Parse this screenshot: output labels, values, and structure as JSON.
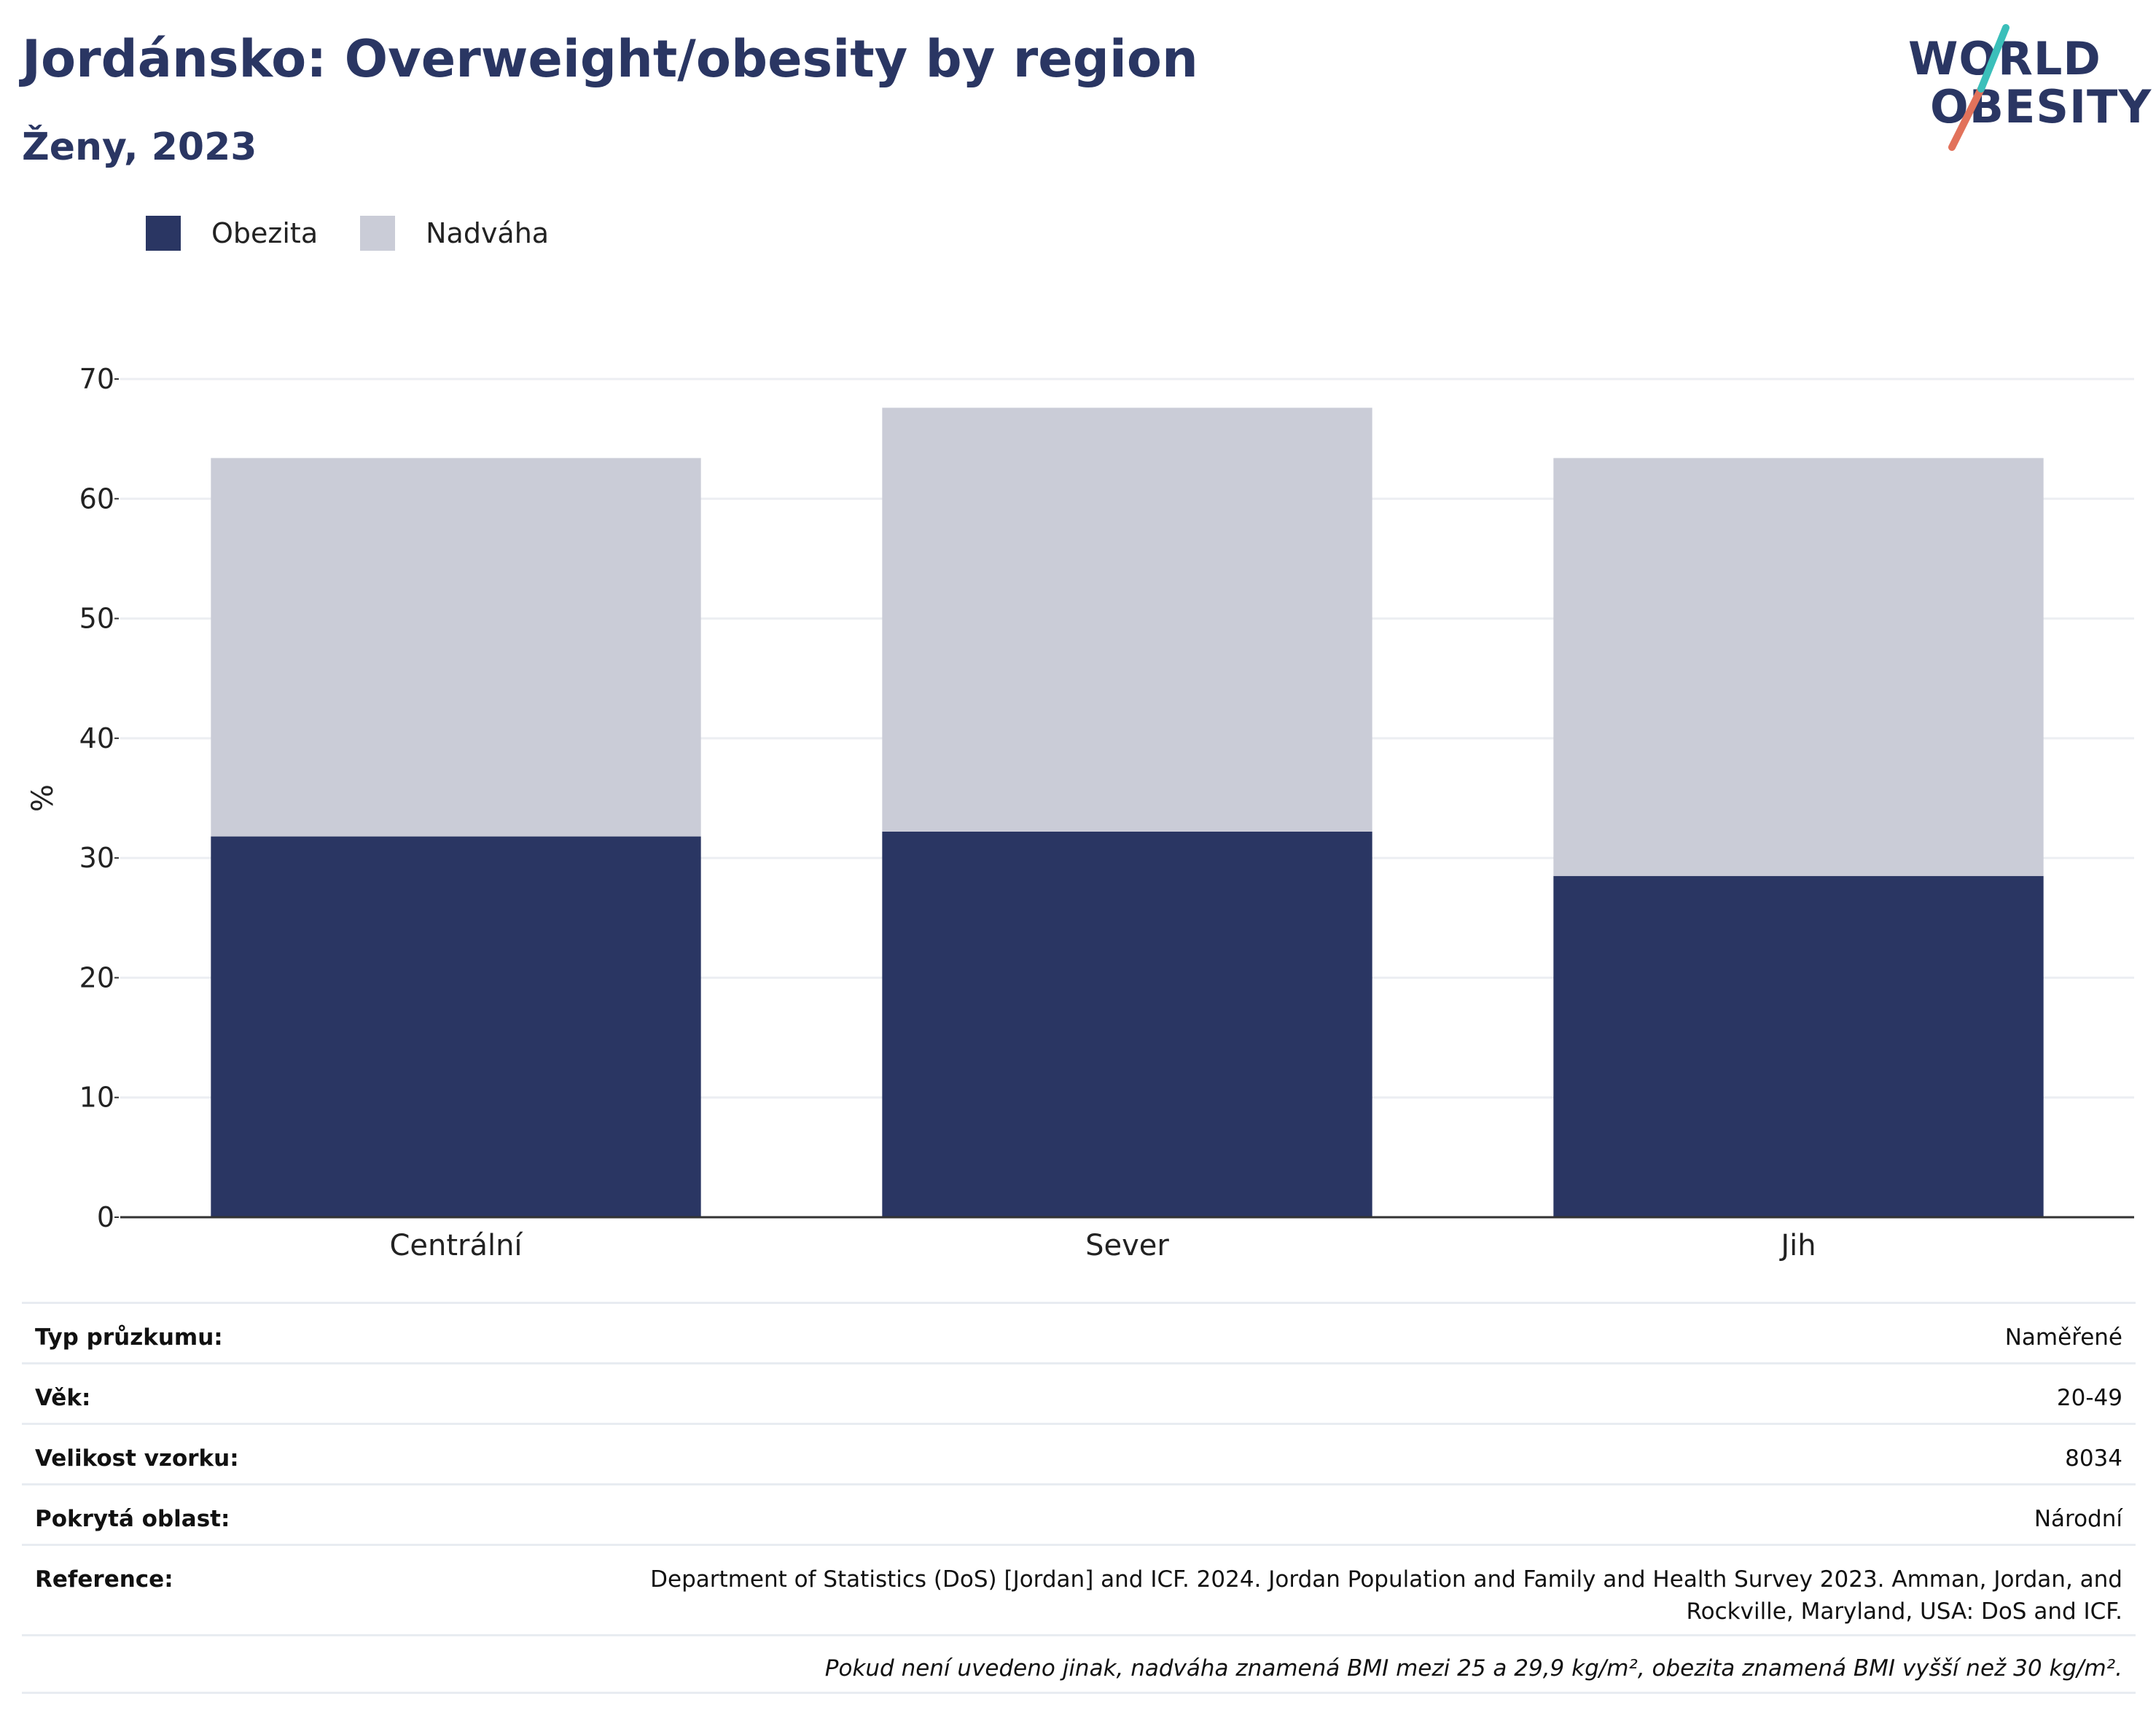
{
  "header": {
    "title": "Jordánsko: Overweight/obesity by region",
    "subtitle": "Ženy, 2023"
  },
  "logo": {
    "line1": "WORLD",
    "line2": "OBESITY"
  },
  "legend": {
    "items": [
      {
        "label": "Obezita",
        "color": "#2a3663"
      },
      {
        "label": "Nadváha",
        "color": "#caccd7"
      }
    ]
  },
  "chart_data": {
    "type": "bar",
    "stacked": true,
    "categories": [
      "Centrální",
      "Sever",
      "Jih"
    ],
    "series": [
      {
        "name": "Obezita",
        "color": "#2a3663",
        "values": [
          31.8,
          32.2,
          28.5
        ]
      },
      {
        "name": "Nadváha",
        "color": "#caccd7",
        "values": [
          31.6,
          35.4,
          34.9
        ]
      }
    ],
    "ylabel": "%",
    "ylim": [
      0,
      70
    ],
    "yticks": [
      0,
      10,
      20,
      30,
      40,
      50,
      60,
      70
    ],
    "grid": true,
    "legend_position": "top-left"
  },
  "info": {
    "rows": [
      {
        "key": "Typ průzkumu:",
        "value": "Naměřené"
      },
      {
        "key": "Věk:",
        "value": "20-49"
      },
      {
        "key": "Velikost vzorku:",
        "value": "8034"
      },
      {
        "key": "Pokrytá oblast:",
        "value": "Národní"
      },
      {
        "key": "Reference:",
        "value": "Department of Statistics (DoS) [Jordan] and ICF. 2024. Jordan Population and Family and Health Survey 2023. Amman, Jordan, and Rockville, Maryland, USA: DoS and ICF."
      }
    ],
    "note": "Pokud není uvedeno jinak, nadváha znamená BMI mezi 25 a 29,9 kg/m², obezita znamená BMI vyšší než 30 kg/m²."
  }
}
